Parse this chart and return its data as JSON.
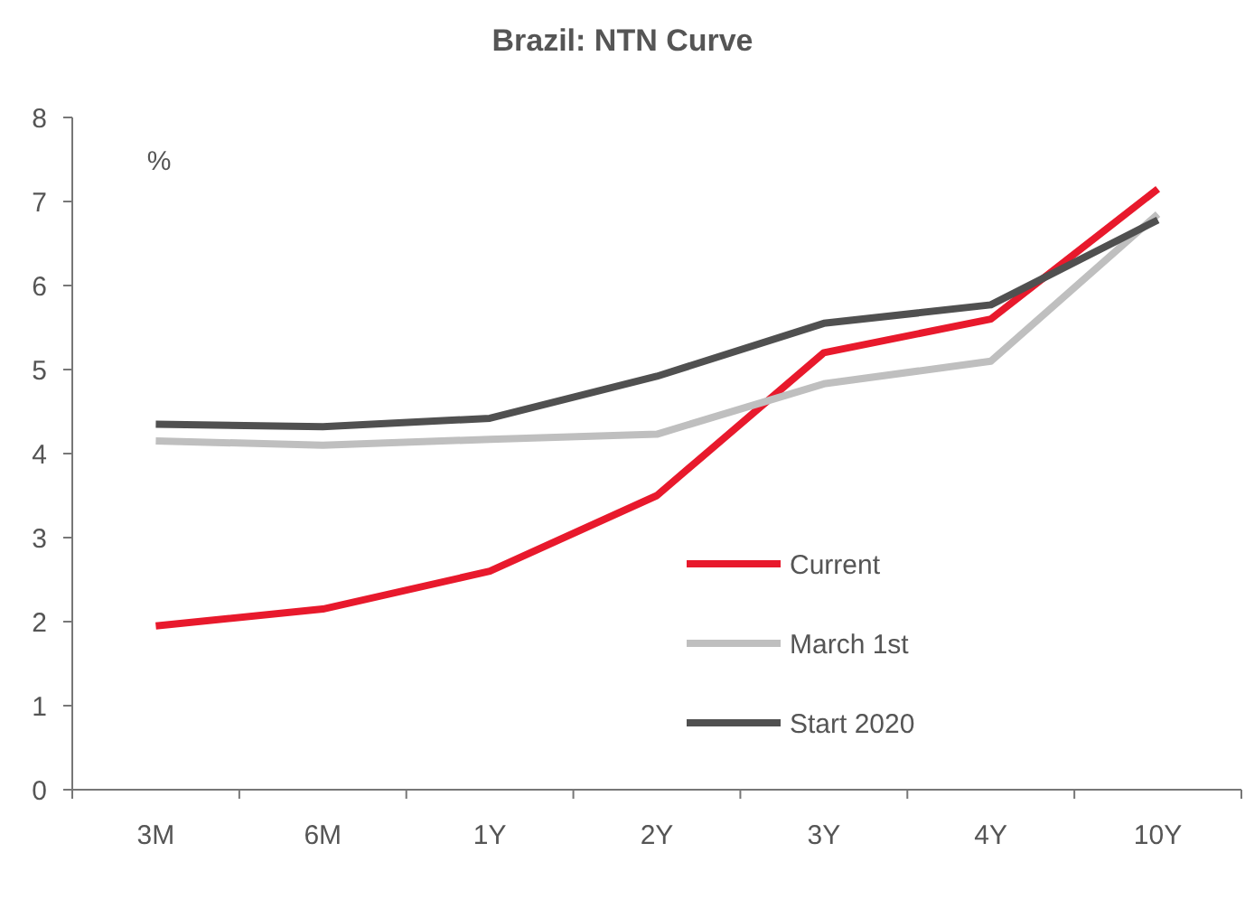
{
  "chart_data": {
    "type": "line",
    "title": "Brazil: NTN Curve",
    "ylabel": "%",
    "categories": [
      "3M",
      "6M",
      "1Y",
      "2Y",
      "3Y",
      "4Y",
      "10Y"
    ],
    "series": [
      {
        "name": "Current",
        "color": "#e8192c",
        "values": [
          1.95,
          2.15,
          2.6,
          3.5,
          5.2,
          5.6,
          7.15
        ]
      },
      {
        "name": "March 1st",
        "color": "#bfbfbf",
        "values": [
          4.15,
          4.1,
          4.17,
          4.23,
          4.83,
          5.1,
          6.85
        ]
      },
      {
        "name": "Start 2020",
        "color": "#505050",
        "values": [
          4.35,
          4.32,
          4.42,
          4.92,
          5.55,
          5.77,
          6.78
        ]
      }
    ],
    "ylim": [
      0,
      8
    ],
    "yticks": [
      0,
      1,
      2,
      3,
      4,
      5,
      6,
      7,
      8
    ],
    "grid": false,
    "legend": "bottom right",
    "marker": "none",
    "line_style": "solid"
  }
}
